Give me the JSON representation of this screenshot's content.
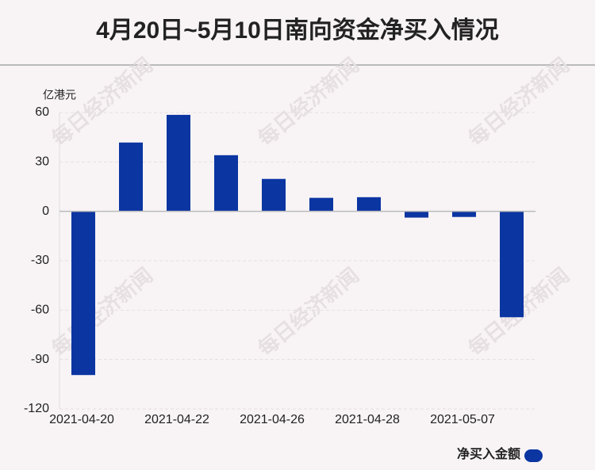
{
  "chart_data": {
    "type": "bar",
    "title": "4月20日~5月10日南向资金净买入情况",
    "y_label": "亿港元",
    "watermark": "每日经济新闻",
    "categories": [
      "2021-04-20",
      null,
      "2021-04-22",
      null,
      "2021-04-26",
      null,
      "2021-04-28",
      null,
      "2021-05-07",
      null
    ],
    "series": [
      {
        "name": "净买入金额",
        "color": "#0b35a1",
        "values": [
          -99.4,
          41.8,
          58.6,
          34.1,
          19.7,
          8.2,
          8.6,
          -3.8,
          -3.4,
          -64.3
        ]
      }
    ],
    "ylim": [
      -120,
      60
    ],
    "yticks": [
      -120,
      -90,
      -60,
      -30,
      0,
      30,
      60
    ],
    "grid": true,
    "legend": "bottom-right"
  }
}
